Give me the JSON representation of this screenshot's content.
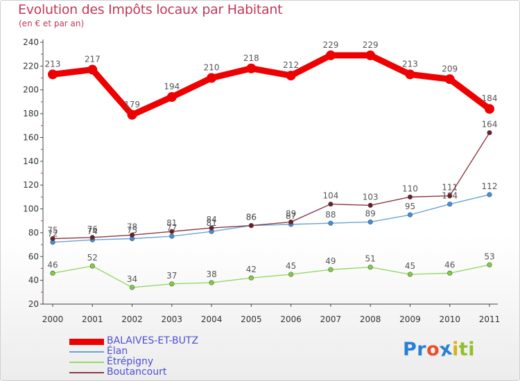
{
  "title": "Evolution des Impôts locaux par Habitant",
  "subtitle": "(en € et par an)",
  "brand": {
    "letters": [
      "P",
      "r",
      "o",
      "x",
      "i",
      "t",
      "i"
    ],
    "colors": [
      "#2a7fd4",
      "#2a7fd4",
      "#e8502c",
      "#2a7fd4",
      "#d8b11c",
      "#8fbf2a",
      "#8fbf2a"
    ]
  },
  "chart_data": {
    "type": "line",
    "title": "Evolution des Impôts locaux par Habitant",
    "subtitle": "(en € et par an)",
    "x": [
      "2000",
      "2001",
      "2002",
      "2003",
      "2004",
      "2005",
      "2006",
      "2007",
      "2008",
      "2009",
      "2010",
      "2011"
    ],
    "ylim": [
      20,
      240
    ],
    "yticks": [
      20,
      40,
      60,
      80,
      100,
      120,
      140,
      160,
      180,
      200,
      220,
      240
    ],
    "grid": false,
    "legend_position": "bottom-left",
    "series": [
      {
        "name": "BALAIVES-ET-BUTZ",
        "color": "#ee0000",
        "width": 9,
        "marker": "#ee0000",
        "values": [
          213,
          217,
          179,
          194,
          210,
          218,
          212,
          229,
          229,
          213,
          209,
          184
        ]
      },
      {
        "name": "Élan",
        "color": "#6aa2d6",
        "width": 1.4,
        "marker": "#3f8fdc",
        "values": [
          72,
          74,
          75,
          77,
          81,
          86,
          87,
          88,
          89,
          95,
          104,
          112
        ]
      },
      {
        "name": "Étrépigny",
        "color": "#95d765",
        "width": 1.4,
        "marker": "#7ed03a",
        "values": [
          46,
          52,
          34,
          37,
          38,
          42,
          45,
          49,
          51,
          45,
          46,
          53
        ]
      },
      {
        "name": "Boutancourt",
        "color": "#8a3a45",
        "width": 1.4,
        "marker": "#6b1f2b",
        "values": [
          75,
          76,
          78,
          81,
          84,
          86,
          89,
          104,
          103,
          110,
          111,
          164
        ]
      }
    ]
  }
}
